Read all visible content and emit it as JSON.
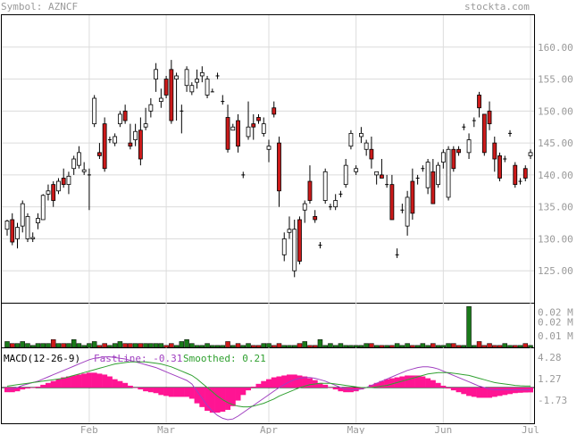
{
  "header": {
    "symbol_label": "Symbol: AZNCF",
    "site": "stockta.com"
  },
  "macd": {
    "label": "MACD(12-26-9)",
    "fast_label": "FastLine: -0.31",
    "smoothed_label": "Smoothed: 0.21",
    "colors": {
      "fast": "#a040c0",
      "smoothed": "#30a030",
      "hist": "#ff1493"
    }
  },
  "colors": {
    "up": "#ffffff",
    "down": "#cc1a1a",
    "volume": "#1a7a1a",
    "volume_down": "#cc1a1a",
    "grid": "#dcdcdc"
  },
  "chart_data": [
    {
      "type": "candlestick",
      "title": "",
      "ylim": [
        120,
        165
      ],
      "yticks": [
        "160.00",
        "155.00",
        "150.00",
        "145.00",
        "140.00",
        "135.00",
        "130.00",
        "125.00"
      ],
      "ytick_values": [
        160,
        155,
        150,
        145,
        140,
        135,
        130,
        125
      ],
      "xticks": [
        "Feb",
        "Mar",
        "Apr",
        "May",
        "Jun",
        "Jul"
      ],
      "xtick_index": [
        16,
        31,
        51,
        68,
        85,
        102
      ],
      "candles": [
        [
          131.5,
          133.0,
          130.5,
          132.8
        ],
        [
          133.0,
          134.0,
          129.0,
          129.5
        ],
        [
          130.0,
          132.5,
          128.5,
          131.8
        ],
        [
          132.0,
          136.0,
          131.0,
          135.5
        ],
        [
          130.0,
          134.0,
          129.5,
          133.5
        ],
        [
          130.0,
          131.0,
          129.5,
          130.2
        ],
        [
          132.5,
          134.0,
          131.5,
          133.2
        ],
        [
          133.0,
          137.0,
          133.0,
          136.8
        ],
        [
          137.0,
          138.5,
          136.0,
          137.5
        ],
        [
          138.5,
          139.0,
          135.0,
          136.0
        ],
        [
          137.5,
          139.5,
          137.0,
          139.0
        ],
        [
          139.5,
          141.0,
          138.0,
          138.5
        ],
        [
          138.5,
          140.5,
          137.0,
          139.8
        ],
        [
          141.0,
          143.0,
          140.0,
          142.5
        ],
        [
          141.5,
          144.5,
          141.0,
          143.5
        ],
        [
          140.5,
          142.0,
          140.0,
          140.8
        ],
        [
          140.0,
          141.0,
          134.5,
          140.0
        ],
        [
          148.0,
          152.5,
          147.5,
          152.0
        ],
        [
          143.5,
          145.0,
          142.5,
          143.0
        ],
        [
          148.0,
          149.0,
          140.5,
          141.0
        ],
        [
          145.5,
          146.0,
          145.0,
          145.5
        ],
        [
          145.0,
          146.5,
          144.5,
          146.0
        ],
        [
          148.0,
          150.0,
          147.5,
          149.5
        ],
        [
          150.0,
          151.0,
          148.0,
          148.5
        ],
        [
          145.0,
          148.0,
          144.0,
          144.5
        ],
        [
          145.5,
          148.0,
          144.5,
          146.8
        ],
        [
          147.0,
          149.0,
          141.5,
          142.5
        ],
        [
          147.5,
          150.5,
          147.0,
          148.0
        ],
        [
          150.0,
          152.0,
          149.0,
          151.0
        ],
        [
          155.0,
          157.5,
          153.0,
          156.5
        ],
        [
          151.5,
          153.5,
          150.5,
          152.0
        ],
        [
          155.0,
          155.5,
          152.0,
          152.5
        ],
        [
          156.5,
          158.0,
          148.0,
          148.5
        ],
        [
          155.0,
          156.0,
          148.5,
          155.5
        ],
        [
          150.0,
          151.0,
          146.5,
          150.0
        ],
        [
          154.0,
          157.0,
          153.0,
          156.5
        ],
        [
          153.0,
          154.5,
          152.5,
          154.0
        ],
        [
          154.5,
          156.5,
          153.5,
          155.0
        ],
        [
          155.5,
          157.0,
          154.5,
          156.0
        ],
        [
          152.5,
          155.5,
          152.0,
          155.0
        ],
        [
          153.0,
          153.5,
          153.0,
          153.0
        ],
        [
          155.5,
          156.0,
          155.0,
          155.5
        ],
        [
          151.5,
          152.5,
          151.0,
          151.5
        ],
        [
          149.0,
          151.0,
          143.5,
          144.0
        ],
        [
          147.0,
          148.0,
          147.0,
          147.5
        ],
        [
          148.5,
          149.5,
          143.5,
          144.5
        ],
        [
          140.0,
          140.5,
          139.5,
          140.0
        ],
        [
          146.0,
          151.5,
          145.5,
          147.5
        ],
        [
          148.0,
          149.5,
          145.5,
          147.5
        ],
        [
          149.0,
          149.5,
          148.0,
          148.5
        ],
        [
          146.5,
          149.0,
          146.0,
          148.0
        ],
        [
          144.0,
          145.5,
          142.0,
          144.5
        ],
        [
          150.5,
          151.5,
          149.0,
          149.5
        ],
        [
          145.0,
          146.0,
          135.0,
          137.5
        ],
        [
          127.5,
          131.0,
          126.5,
          130.0
        ],
        [
          131.0,
          133.5,
          130.0,
          131.5
        ],
        [
          125.0,
          133.0,
          124.0,
          131.5
        ],
        [
          133.0,
          133.5,
          126.0,
          126.5
        ],
        [
          134.5,
          136.0,
          132.5,
          135.5
        ],
        [
          139.0,
          141.5,
          135.5,
          136.0
        ],
        [
          133.5,
          134.5,
          132.5,
          133.0
        ],
        [
          129.0,
          129.5,
          128.5,
          129.0
        ],
        [
          136.0,
          141.0,
          135.5,
          140.5
        ],
        [
          135.0,
          135.5,
          134.5,
          135.0
        ],
        [
          135.0,
          137.0,
          134.5,
          136.0
        ],
        [
          137.0,
          137.5,
          136.5,
          137.0
        ],
        [
          138.5,
          142.5,
          138.0,
          141.5
        ],
        [
          144.5,
          147.0,
          144.0,
          146.5
        ],
        [
          140.5,
          141.5,
          140.0,
          141.0
        ],
        [
          146.0,
          147.5,
          145.0,
          146.5
        ],
        [
          144.0,
          145.5,
          143.0,
          145.0
        ],
        [
          144.0,
          146.0,
          141.0,
          142.5
        ],
        [
          140.0,
          140.5,
          138.5,
          140.5
        ],
        [
          140.0,
          142.5,
          139.5,
          139.5
        ],
        [
          138.5,
          140.0,
          138.0,
          138.5
        ],
        [
          138.5,
          140.0,
          133.0,
          133.0
        ],
        [
          127.5,
          128.5,
          127.0,
          127.5
        ],
        [
          134.5,
          135.5,
          134.0,
          134.5
        ],
        [
          132.0,
          137.5,
          130.5,
          136.5
        ],
        [
          139.0,
          141.0,
          133.0,
          134.0
        ],
        [
          139.5,
          140.0,
          138.5,
          139.5
        ],
        [
          141.0,
          141.5,
          140.5,
          141.0
        ],
        [
          138.0,
          142.5,
          137.0,
          142.0
        ],
        [
          140.5,
          142.5,
          135.5,
          135.5
        ],
        [
          138.5,
          142.0,
          138.0,
          141.5
        ],
        [
          142.0,
          144.0,
          141.0,
          143.5
        ],
        [
          136.5,
          144.5,
          136.0,
          144.0
        ],
        [
          144.0,
          144.5,
          140.5,
          141.0
        ],
        [
          144.0,
          144.5,
          143.0,
          143.5
        ],
        [
          147.5,
          148.0,
          147.0,
          147.5
        ],
        [
          143.5,
          146.5,
          142.5,
          145.5
        ],
        [
          148.5,
          149.0,
          147.5,
          148.5
        ],
        [
          152.5,
          153.0,
          149.0,
          150.5
        ],
        [
          149.5,
          149.5,
          143.0,
          143.5
        ],
        [
          150.0,
          151.5,
          147.0,
          148.0
        ],
        [
          145.0,
          146.0,
          140.5,
          142.5
        ],
        [
          143.0,
          143.5,
          139.0,
          139.5
        ],
        [
          142.5,
          143.0,
          142.0,
          142.5
        ],
        [
          146.5,
          147.0,
          146.0,
          146.5
        ],
        [
          141.5,
          142.0,
          138.0,
          138.5
        ],
        [
          139.0,
          139.5,
          138.5,
          139.0
        ],
        [
          141.0,
          141.5,
          139.0,
          139.5
        ],
        [
          143.0,
          144.0,
          142.5,
          143.5
        ]
      ]
    },
    {
      "type": "bar",
      "title": "",
      "yticks": [
        "0.02 M",
        "0.02 M",
        "0.01 M"
      ],
      "ytick_values": [
        0.018,
        0.013,
        0.006
      ],
      "ylim": [
        0,
        0.022
      ],
      "values": [
        0.003,
        0.002,
        0.002,
        0.003,
        0.002,
        0.001,
        0.002,
        0.002,
        0.002,
        0.004,
        0.002,
        0.002,
        0.002,
        0.004,
        0.002,
        0.001,
        0.002,
        0.003,
        0.001,
        0.002,
        0.001,
        0.002,
        0.003,
        0.002,
        0.002,
        0.002,
        0.002,
        0.002,
        0.002,
        0.002,
        0.002,
        0.001,
        0.002,
        0.001,
        0.003,
        0.004,
        0.002,
        0.001,
        0.001,
        0.002,
        0.001,
        0.001,
        0.001,
        0.003,
        0.001,
        0.002,
        0.001,
        0.002,
        0.001,
        0.001,
        0.002,
        0.002,
        0.001,
        0.002,
        0.001,
        0.001,
        0.001,
        0.002,
        0.003,
        0.001,
        0.001,
        0.004,
        0.001,
        0.002,
        0.001,
        0.002,
        0.001,
        0.001,
        0.001,
        0.001,
        0.002,
        0.002,
        0.001,
        0.001,
        0.001,
        0.001,
        0.002,
        0.001,
        0.002,
        0.001,
        0.001,
        0.002,
        0.001,
        0.002,
        0.001,
        0.001,
        0.002,
        0.002,
        0.001,
        0.001,
        0.021,
        0.001,
        0.003,
        0.001,
        0.002,
        0.001,
        0.001,
        0.002,
        0.001,
        0.001,
        0.001,
        0.002,
        0.001
      ]
    },
    {
      "type": "line",
      "title": "",
      "yticks": [
        "4.28",
        "1.27",
        "-1.73"
      ],
      "ytick_values": [
        4.28,
        1.27,
        -1.73
      ],
      "ylim": [
        -5.0,
        5.5
      ],
      "series": [
        {
          "name": "FastLine: -0.31",
          "values": [
            -0.3,
            -0.2,
            0.0,
            0.3,
            0.5,
            0.7,
            0.9,
            1.2,
            1.5,
            1.8,
            2.1,
            2.4,
            2.7,
            3.0,
            3.3,
            3.6,
            3.9,
            4.1,
            4.2,
            4.3,
            4.3,
            4.2,
            4.1,
            4.0,
            3.8,
            3.6,
            3.4,
            3.2,
            3.0,
            2.8,
            2.5,
            2.2,
            1.9,
            1.6,
            1.3,
            1.0,
            0.5,
            -0.5,
            -1.5,
            -2.5,
            -3.3,
            -3.9,
            -4.3,
            -4.5,
            -4.4,
            -4.0,
            -3.5,
            -3.0,
            -2.5,
            -2.0,
            -1.5,
            -1.0,
            -0.5,
            0.0,
            0.4,
            0.8,
            1.1,
            1.3,
            1.4,
            1.4,
            1.3,
            1.1,
            0.9,
            0.6,
            0.3,
            0.0,
            -0.2,
            -0.3,
            -0.3,
            -0.2,
            0.0,
            0.3,
            0.6,
            0.9,
            1.2,
            1.5,
            1.8,
            2.1,
            2.4,
            2.6,
            2.8,
            2.9,
            2.9,
            2.8,
            2.6,
            2.3,
            2.0,
            1.7,
            1.4,
            1.1,
            0.8,
            0.5,
            0.2,
            0.0,
            -0.2,
            -0.3,
            -0.3,
            -0.3,
            -0.3,
            -0.3,
            -0.31,
            -0.31,
            -0.31
          ]
        },
        {
          "name": "Smoothed: 0.21",
          "values": [
            0.2,
            0.3,
            0.4,
            0.5,
            0.6,
            0.7,
            0.8,
            0.9,
            1.0,
            1.1,
            1.2,
            1.3,
            1.5,
            1.7,
            1.9,
            2.1,
            2.3,
            2.5,
            2.7,
            2.9,
            3.1,
            3.3,
            3.4,
            3.5,
            3.6,
            3.6,
            3.6,
            3.6,
            3.5,
            3.4,
            3.3,
            3.1,
            2.9,
            2.6,
            2.3,
            2.0,
            1.7,
            1.2,
            0.6,
            0.0,
            -0.6,
            -1.2,
            -1.7,
            -2.1,
            -2.4,
            -2.6,
            -2.7,
            -2.7,
            -2.6,
            -2.4,
            -2.2,
            -1.9,
            -1.6,
            -1.2,
            -0.9,
            -0.6,
            -0.3,
            0.0,
            0.2,
            0.4,
            0.5,
            0.6,
            0.6,
            0.6,
            0.5,
            0.4,
            0.3,
            0.2,
            0.1,
            0.0,
            0.0,
            0.0,
            0.1,
            0.2,
            0.3,
            0.5,
            0.7,
            0.9,
            1.1,
            1.3,
            1.5,
            1.7,
            1.9,
            2.0,
            2.1,
            2.1,
            2.1,
            2.0,
            1.9,
            1.8,
            1.7,
            1.5,
            1.3,
            1.1,
            0.9,
            0.7,
            0.6,
            0.5,
            0.4,
            0.3,
            0.25,
            0.22,
            0.21
          ]
        }
      ]
    }
  ]
}
